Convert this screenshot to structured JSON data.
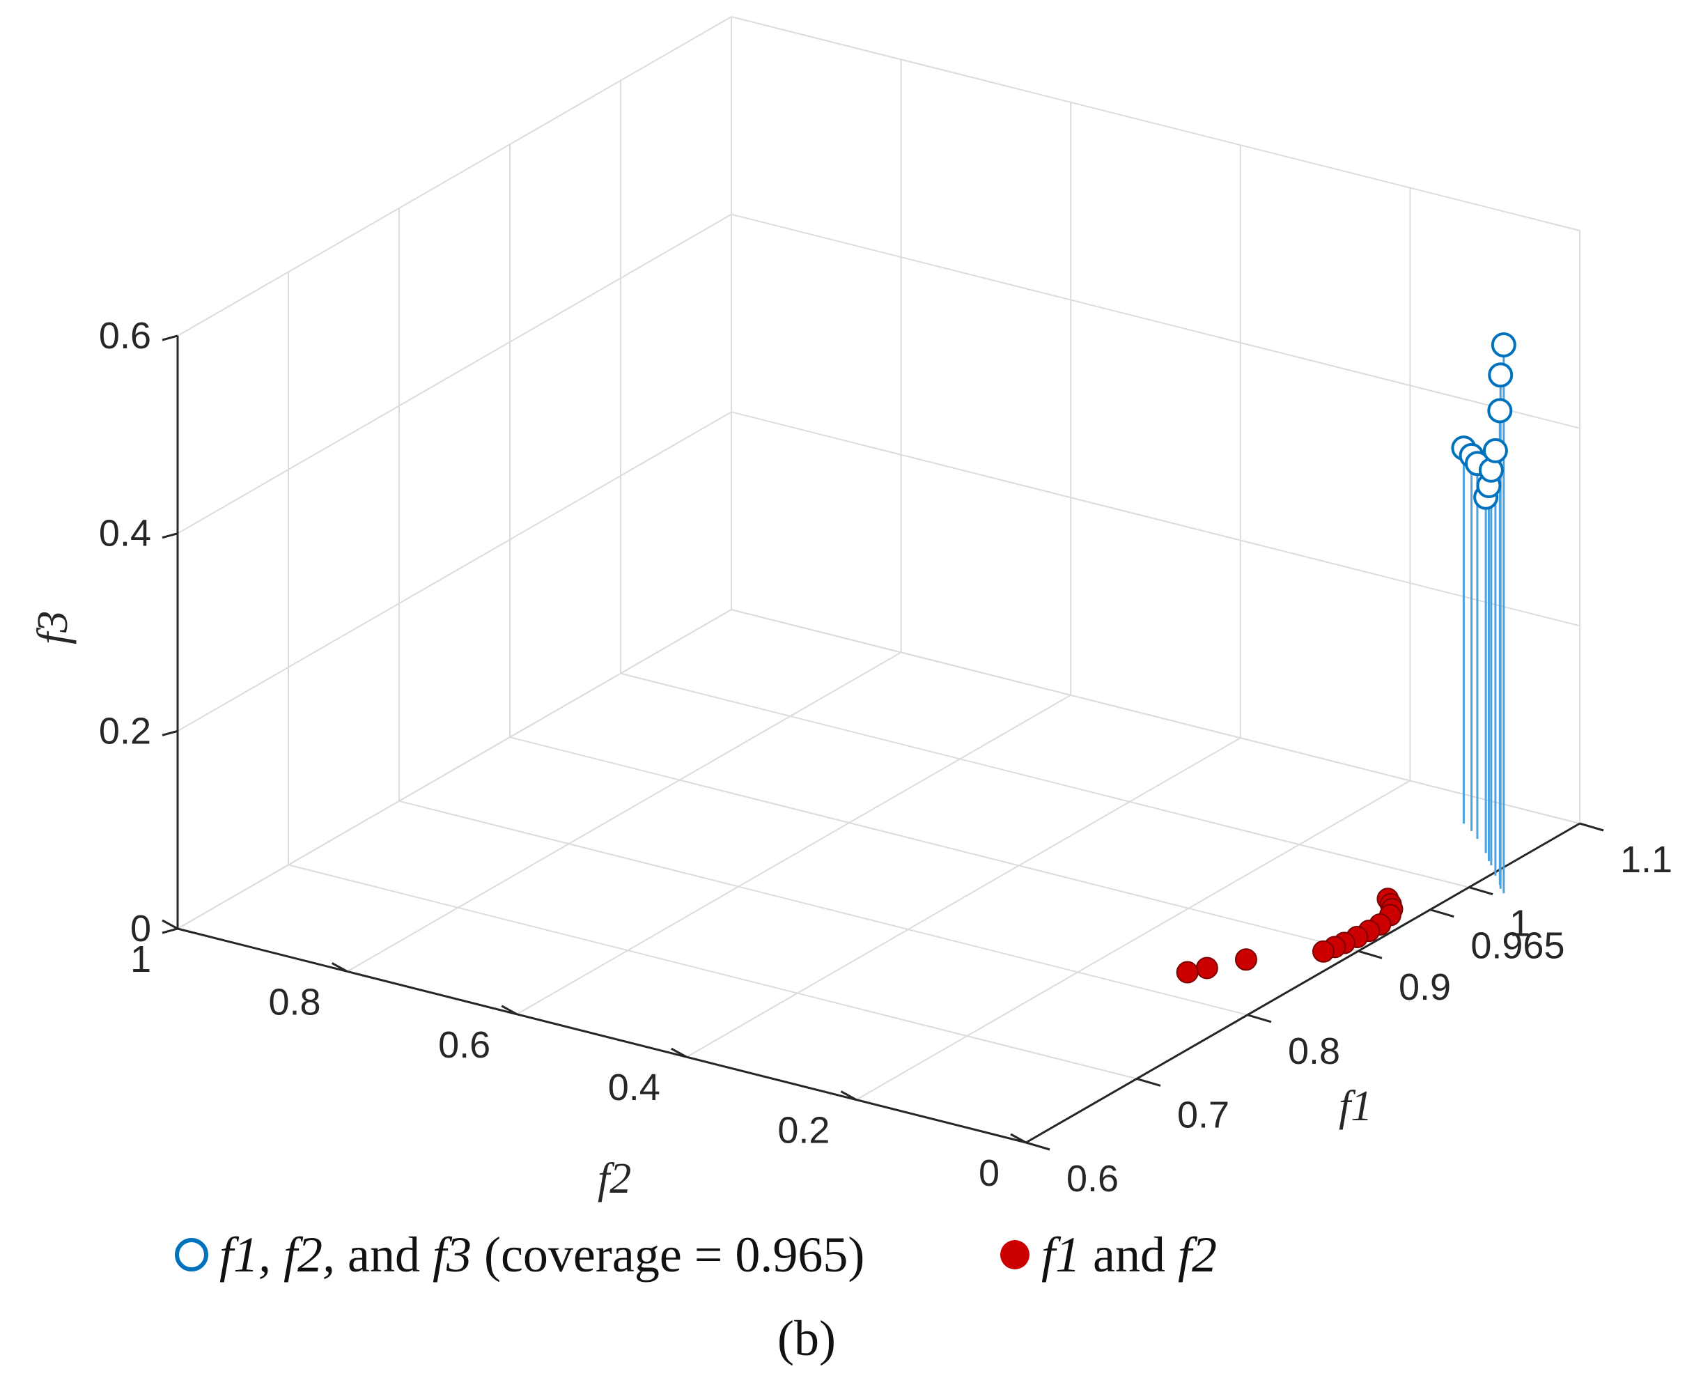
{
  "chart_data": {
    "type": "scatter",
    "projection": "3d",
    "title": "",
    "axes": {
      "x": {
        "label": "f1",
        "range": [
          0.6,
          1.1
        ],
        "ticks": [
          "0.6",
          "0.7",
          "0.8",
          "0.9",
          "0.965",
          "1",
          "1.1"
        ]
      },
      "y": {
        "label": "f2",
        "range": [
          0,
          1
        ],
        "ticks": [
          "0",
          "0.2",
          "0.4",
          "0.6",
          "0.8",
          "1"
        ]
      },
      "z": {
        "label": "f3",
        "range": [
          0,
          0.6
        ],
        "ticks": [
          "0",
          "0.2",
          "0.4",
          "0.6"
        ]
      }
    },
    "grid": true,
    "legend_position": "bottom",
    "series": [
      {
        "name_parts": [
          "f1, f2,",
          " and ",
          "f3",
          " (coverage = 0.965)"
        ],
        "marker": "open-circle-stem",
        "color": "#0072BD",
        "points": [
          {
            "x": 1.068,
            "y": 0.095,
            "z": 0.38
          },
          {
            "x": 1.062,
            "y": 0.078,
            "z": 0.38
          },
          {
            "x": 1.055,
            "y": 0.062,
            "z": 0.38
          },
          {
            "x": 1.042,
            "y": 0.035,
            "z": 0.36
          },
          {
            "x": 1.034,
            "y": 0.021,
            "z": 0.38
          },
          {
            "x": 1.03,
            "y": 0.013,
            "z": 0.4
          },
          {
            "x": 1.02,
            "y": -0.005,
            "z": 0.43
          },
          {
            "x": 1.011,
            "y": -0.022,
            "z": 0.48
          },
          {
            "x": 1.007,
            "y": -0.028,
            "z": 0.52
          },
          {
            "x": 1.003,
            "y": -0.037,
            "z": 0.555
          }
        ]
      },
      {
        "name_parts": [
          "f1",
          " and ",
          "f2"
        ],
        "marker": "filled-circle",
        "color": "#CC0000",
        "points": [
          {
            "x": 0.965,
            "y": 0.05,
            "z": 0
          },
          {
            "x": 0.96,
            "y": 0.04,
            "z": 0
          },
          {
            "x": 0.955,
            "y": 0.032,
            "z": 0
          },
          {
            "x": 0.948,
            "y": 0.025,
            "z": 0
          },
          {
            "x": 0.935,
            "y": 0.02,
            "z": 0
          },
          {
            "x": 0.925,
            "y": 0.02,
            "z": 0
          },
          {
            "x": 0.915,
            "y": 0.021,
            "z": 0
          },
          {
            "x": 0.905,
            "y": 0.023,
            "z": 0
          },
          {
            "x": 0.898,
            "y": 0.025,
            "z": 0
          },
          {
            "x": 0.89,
            "y": 0.028,
            "z": 0
          },
          {
            "x": 0.86,
            "y": 0.08,
            "z": 0
          },
          {
            "x": 0.84,
            "y": 0.1,
            "z": 0
          },
          {
            "x": 0.83,
            "y": 0.11,
            "z": 0
          }
        ]
      }
    ]
  },
  "caption": "(b)"
}
